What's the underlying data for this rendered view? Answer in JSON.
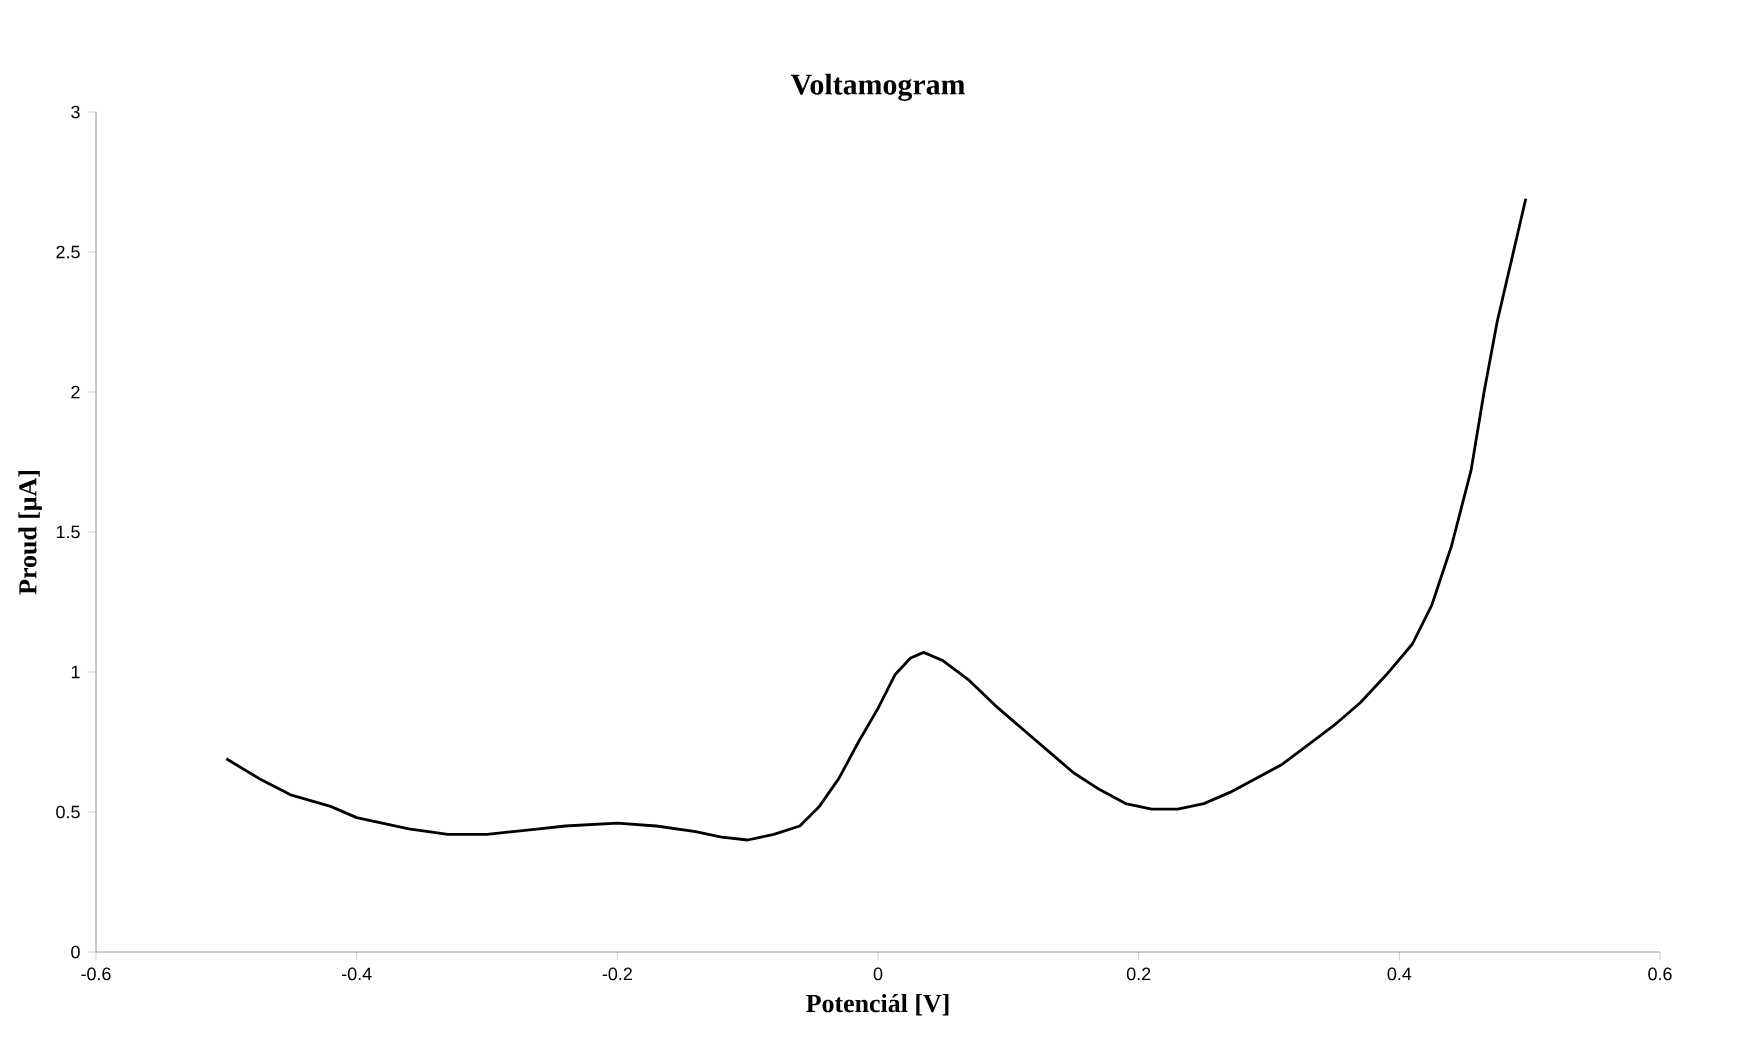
{
  "chart_data": {
    "type": "line",
    "title": "Voltamogram",
    "xlabel": "Potenciál [V]",
    "ylabel": "Proud [μA]",
    "xlim": [
      -0.6,
      0.6
    ],
    "xticks": [
      -0.6,
      -0.4,
      -0.2,
      0,
      0.2,
      0.4,
      0.6
    ],
    "ylim": [
      0,
      3
    ],
    "yticks": [
      0,
      0.5,
      1,
      1.5,
      2,
      2.5,
      3
    ],
    "grid": false,
    "marker": "none",
    "line_style": "solid",
    "series": [
      {
        "color": "#000000",
        "x": [
          -0.5,
          -0.475,
          -0.45,
          -0.42,
          -0.4,
          -0.36,
          -0.33,
          -0.3,
          -0.26,
          -0.24,
          -0.2,
          -0.17,
          -0.14,
          -0.12,
          -0.1,
          -0.08,
          -0.06,
          -0.045,
          -0.03,
          -0.015,
          0.0,
          0.013,
          0.025,
          0.035,
          0.05,
          0.07,
          0.09,
          0.11,
          0.13,
          0.15,
          0.17,
          0.19,
          0.21,
          0.23,
          0.25,
          0.27,
          0.29,
          0.31,
          0.33,
          0.35,
          0.37,
          0.39,
          0.41,
          0.425,
          0.44,
          0.455,
          0.465,
          0.475,
          0.485,
          0.497
        ],
        "values": [
          0.69,
          0.62,
          0.56,
          0.52,
          0.48,
          0.44,
          0.42,
          0.42,
          0.44,
          0.45,
          0.46,
          0.45,
          0.43,
          0.41,
          0.4,
          0.42,
          0.45,
          0.52,
          0.62,
          0.75,
          0.87,
          0.99,
          1.05,
          1.07,
          1.04,
          0.97,
          0.88,
          0.8,
          0.72,
          0.64,
          0.58,
          0.53,
          0.51,
          0.51,
          0.53,
          0.57,
          0.62,
          0.67,
          0.74,
          0.81,
          0.89,
          0.99,
          1.1,
          1.24,
          1.45,
          1.72,
          2.0,
          2.25,
          2.45,
          2.69
        ]
      }
    ]
  }
}
